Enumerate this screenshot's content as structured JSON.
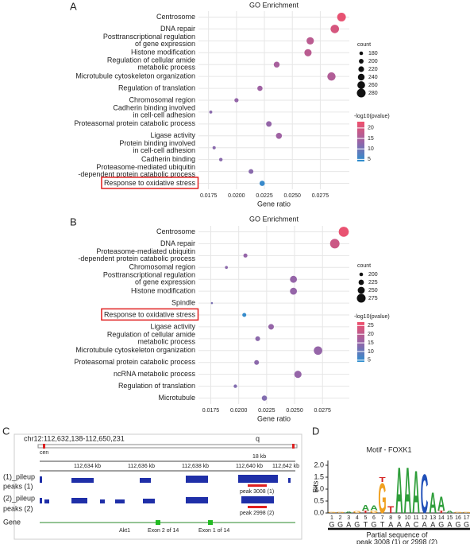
{
  "panel_labels": [
    "A",
    "B",
    "C",
    "D"
  ],
  "chart_data": [
    {
      "type": "dot",
      "title": "GO Enrichment",
      "x_label": "Gene ratio",
      "categories": [
        "Centrosome",
        "DNA repair",
        "Posttranscriptional regulation\nof gene expression",
        "Histone modification",
        "Regulation of cellular amide\nmetabolic process",
        "Microtubule cytoskeleton organization",
        "Regulation of translation",
        "Chromosomal region",
        "Cadherin binding involved\nin cell-cell adhesion",
        "Proteasomal protein catabolic process",
        "Ligase activity",
        "Protein binding involved\nin cell-cell adhesion",
        "Cadherin binding",
        "Proteasome-mediated ubiquitin\n-dependent protein catabolic process",
        "Response to oxidative stress"
      ],
      "x": [
        0.0294,
        0.0288,
        0.0266,
        0.0264,
        0.0236,
        0.0285,
        0.0221,
        0.02,
        0.0177,
        0.0229,
        0.0238,
        0.018,
        0.0186,
        0.0213,
        0.0223
      ],
      "size": [
        279,
        274,
        253,
        251,
        224,
        271,
        210,
        190,
        168,
        218,
        226,
        171,
        177,
        202,
        212
      ],
      "color_values": [
        22,
        20,
        17,
        17,
        15,
        16,
        14,
        13,
        12,
        13,
        14,
        12,
        12,
        12,
        5
      ],
      "xlim": [
        0.0166,
        0.0301
      ],
      "xticks": [
        0.0175,
        {
          "value": 0.02,
          "label": "0.0200"
        },
        0.0225,
        {
          "value": 0.025,
          "label": "0.0250"
        },
        0.0275
      ],
      "size_title": "count",
      "size_ticks": [
        180,
        200,
        220,
        240,
        260,
        280
      ],
      "color_title": "-log10(pvalue)",
      "clim": [
        4,
        23
      ],
      "cticks": [
        5,
        10,
        15,
        20
      ],
      "colormap": [
        "#2c8fcf",
        "#9a63a6",
        "#f0506c"
      ],
      "grid": true,
      "highlight": 14
    },
    {
      "type": "dot",
      "title": "GO Enrichment",
      "x_label": "Gene ratio",
      "categories": [
        "Centrosome",
        "DNA repair",
        "Proteasome-mediated ubiquitin\n-dependent protein catabolic process",
        "Chromosomal region",
        "Posttranscriptional regulation\nof gene expression",
        "Histone modification",
        "Spindle",
        "Response to oxidative stress",
        "Ligase activity",
        "Regulation of cellular amide\nmetabolic process",
        "Microtubule cytoskeleton organization",
        "Proteasomal protein catabolic process",
        "ncRNA metabolic process",
        "Regulation of translation",
        "Microtubule"
      ],
      "x": [
        0.0294,
        0.0286,
        0.0206,
        0.0189,
        0.0249,
        0.0249,
        0.0176,
        0.0205,
        0.0229,
        0.0217,
        0.0271,
        0.0216,
        0.0253,
        0.0197,
        0.0223
      ],
      "size": [
        294,
        286,
        206,
        189,
        249,
        249,
        176,
        205,
        229,
        217,
        271,
        216,
        253,
        197,
        223
      ],
      "color_values": [
        26,
        22,
        15,
        14,
        15,
        15,
        12,
        5,
        15,
        14,
        15,
        14,
        15,
        13,
        13
      ],
      "xlim": [
        0.0164,
        0.0299
      ],
      "xticks": [
        0.0175,
        {
          "value": 0.02,
          "label": "0.0200"
        },
        0.0225,
        {
          "value": 0.025,
          "label": "0.0250"
        },
        0.0275
      ],
      "size_title": "count",
      "size_ticks": [
        200,
        225,
        250,
        275
      ],
      "color_title": "-log10(pvalue)",
      "clim": [
        4,
        27
      ],
      "cticks": [
        5,
        10,
        15,
        20,
        25
      ],
      "colormap": [
        "#2c8fcf",
        "#9a63a6",
        "#f0506c"
      ],
      "grid": true,
      "highlight": 7
    },
    {
      "type": "logo",
      "title": "Motif - FOXK1",
      "y_label": "Bits",
      "ylim": [
        0,
        2.2
      ],
      "yticks": [
        {
          "value": 0,
          "label": "0.0"
        },
        0.5,
        {
          "value": 1,
          "label": "1.0"
        },
        1.5,
        {
          "value": 2,
          "label": "2.0"
        }
      ],
      "positions": [
        1,
        2,
        3,
        4,
        5,
        6,
        7,
        8,
        9,
        10,
        11,
        12,
        13,
        14,
        15,
        16,
        17
      ],
      "stacks": [
        [
          {
            "letter": "G",
            "bits": 0.05
          }
        ],
        [
          {
            "letter": "G",
            "bits": 0.05
          }
        ],
        [
          {
            "letter": "A",
            "bits": 0.06
          }
        ],
        [
          {
            "letter": "G",
            "bits": 0.08
          }
        ],
        [
          {
            "letter": "T",
            "bits": 0.1
          },
          {
            "letter": "A",
            "bits": 0.25
          }
        ],
        [
          {
            "letter": "G",
            "bits": 0.12
          },
          {
            "letter": "A",
            "bits": 0.2
          }
        ],
        [
          {
            "letter": "G",
            "bits": 1.3
          },
          {
            "letter": "T",
            "bits": 0.2
          }
        ],
        [
          {
            "letter": "T",
            "bits": 0.3
          }
        ],
        [
          {
            "letter": "A",
            "bits": 2.0
          }
        ],
        [
          {
            "letter": "A",
            "bits": 2.0
          }
        ],
        [
          {
            "letter": "A",
            "bits": 1.85
          }
        ],
        [
          {
            "letter": "C",
            "bits": 1.7
          }
        ],
        [
          {
            "letter": "A",
            "bits": 0.9
          }
        ],
        [
          {
            "letter": "T",
            "bits": 0.1
          },
          {
            "letter": "A",
            "bits": 0.6
          }
        ],
        [
          {
            "letter": "A",
            "bits": 0.1
          }
        ],
        [
          {
            "letter": "G",
            "bits": 0.05
          }
        ],
        [
          {
            "letter": "G",
            "bits": 0.05
          }
        ]
      ],
      "letter_colors": {
        "A": "#2e9e3a",
        "C": "#1f4fb8",
        "G": "#f0a020",
        "T": "#d42020"
      },
      "sequence": [
        "G",
        "G",
        "A",
        "G",
        "T",
        "G",
        "T",
        "A",
        "A",
        "A",
        "C",
        "A",
        "A",
        "G",
        "A",
        "G",
        "G"
      ],
      "caption": [
        "Partial sequence of",
        "peak 3008 (1) or 2998 (2)"
      ]
    }
  ],
  "genome_browser": {
    "locus": "chr12:112,632,138-112,650,231",
    "arm": "q",
    "centromere": "cen",
    "scale": "18 kb",
    "ticks": [
      "112,634 kb",
      "112,636 kb",
      "112,638 kb",
      "112,640 kb",
      "112,642 kb"
    ],
    "tracks": [
      "(1)_pileup",
      "peaks (1)",
      "(2)_pileup",
      "peaks (2)",
      "Gene"
    ],
    "peaks": [
      "peak 3008 (1)",
      "peak 2998 (2)"
    ],
    "gene": "Akt1",
    "exons": [
      "Exon 2 of 14",
      "Exon 1 of 14"
    ]
  }
}
